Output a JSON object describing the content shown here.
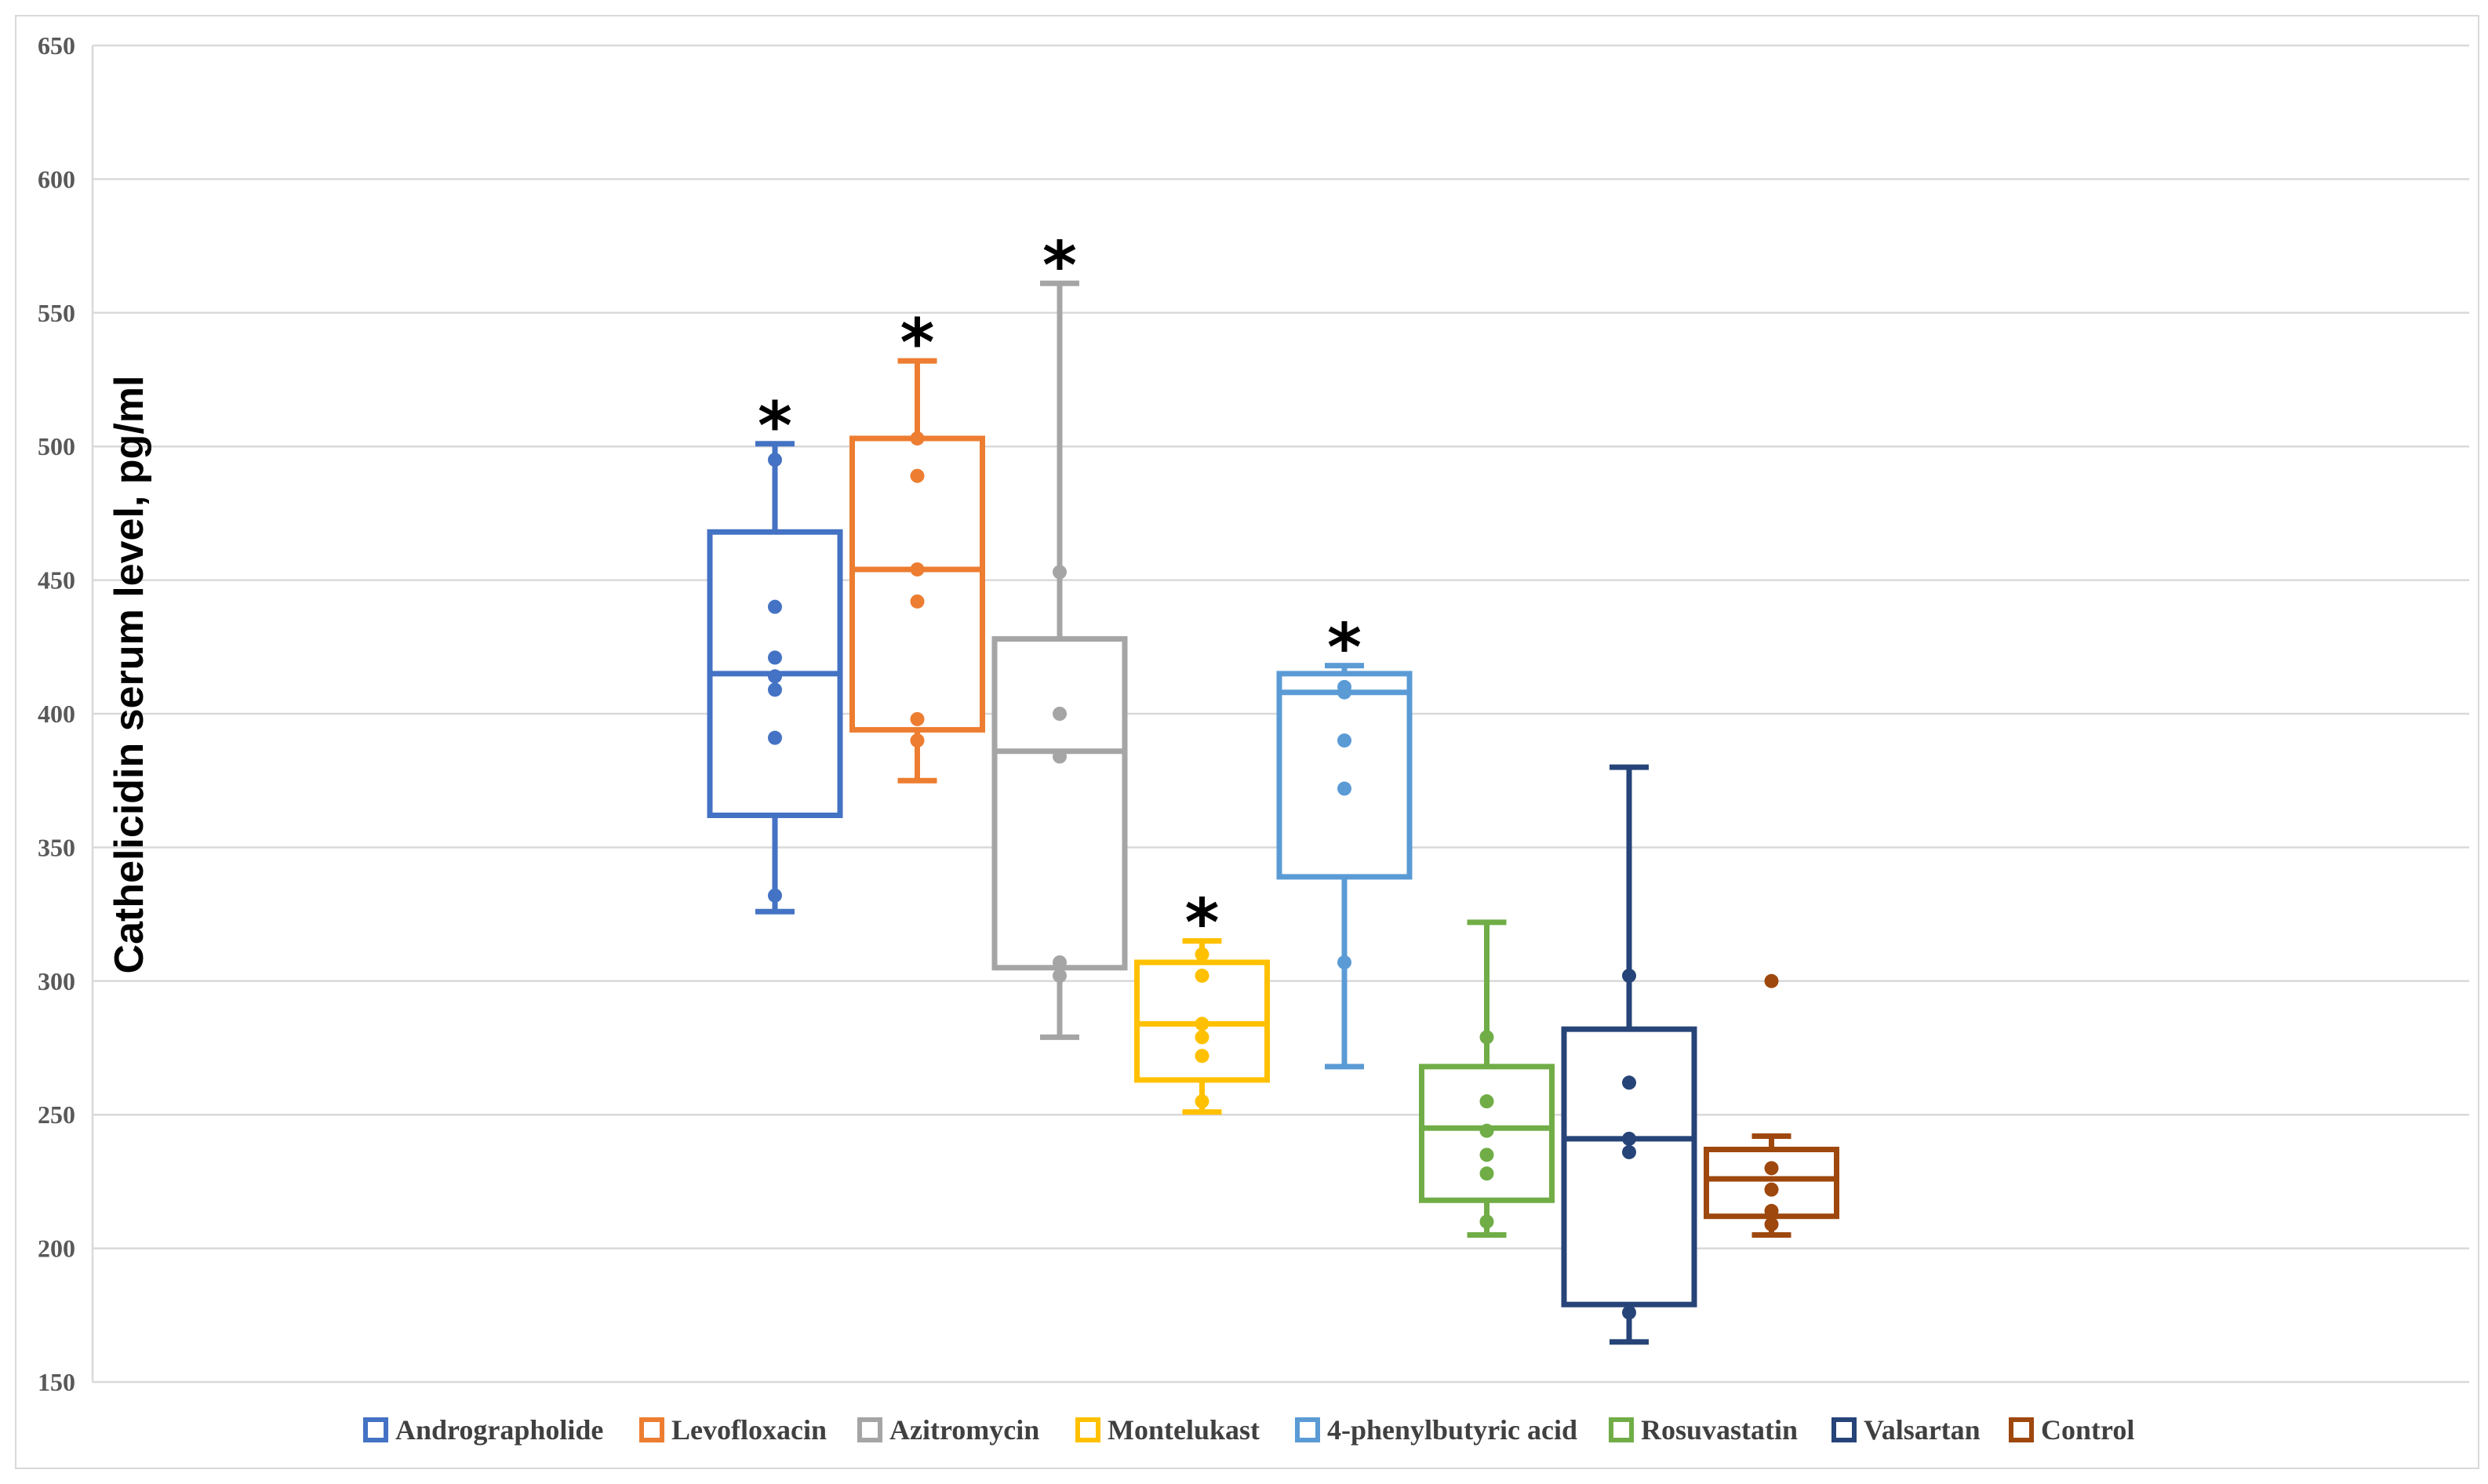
{
  "chart_data": {
    "type": "boxplot",
    "title": "",
    "xlabel": "",
    "ylabel": "Cathelicidin serum level, pg/ml",
    "ylim": [
      150,
      650
    ],
    "yticks": [
      150,
      200,
      250,
      300,
      350,
      400,
      450,
      500,
      550,
      600,
      650
    ],
    "grid": true,
    "legend_position": "bottom",
    "significance_marker": "*",
    "series": [
      {
        "name": "Andrographolide",
        "color": "#4472C4",
        "whisker_low": 326,
        "q1": 362,
        "median": 415,
        "q3": 468,
        "whisker_high": 501,
        "points": [
          332,
          391,
          409,
          414,
          421,
          440,
          495
        ],
        "significant": true
      },
      {
        "name": "Levofloxacin",
        "color": "#ED7D31",
        "whisker_low": 375,
        "q1": 394,
        "median": 454,
        "q3": 503,
        "whisker_high": 532,
        "points": [
          390,
          398,
          442,
          454,
          489,
          503
        ],
        "significant": true
      },
      {
        "name": "Azitromycin",
        "color": "#A5A5A5",
        "whisker_low": 279,
        "q1": 305,
        "median": 386,
        "q3": 428,
        "whisker_high": 561,
        "points": [
          302,
          307,
          384,
          400,
          453
        ],
        "significant": true
      },
      {
        "name": "Montelukast",
        "color": "#FFC000",
        "whisker_low": 251,
        "q1": 263,
        "median": 284,
        "q3": 307,
        "whisker_high": 315,
        "points": [
          255,
          272,
          279,
          284,
          302,
          310
        ],
        "significant": true
      },
      {
        "name": "4-phenylbutyric acid",
        "color": "#5B9BD5",
        "whisker_low": 268,
        "q1": 339,
        "median": 408,
        "q3": 415,
        "whisker_high": 418,
        "points": [
          307,
          372,
          390,
          408,
          410
        ],
        "significant": true
      },
      {
        "name": "Rosuvastatin",
        "color": "#70AD47",
        "whisker_low": 205,
        "q1": 218,
        "median": 245,
        "q3": 268,
        "whisker_high": 322,
        "points": [
          210,
          228,
          235,
          244,
          255,
          279
        ],
        "significant": false
      },
      {
        "name": "Valsartan",
        "color": "#264478",
        "whisker_low": 165,
        "q1": 179,
        "median": 241,
        "q3": 282,
        "whisker_high": 380,
        "points": [
          176,
          236,
          241,
          262,
          302
        ],
        "significant": false
      },
      {
        "name": "Control",
        "color": "#9E480E",
        "whisker_low": 205,
        "q1": 212,
        "median": 226,
        "q3": 237,
        "whisker_high": 242,
        "points": [
          209,
          214,
          222,
          230,
          300
        ],
        "significant": false
      }
    ]
  }
}
